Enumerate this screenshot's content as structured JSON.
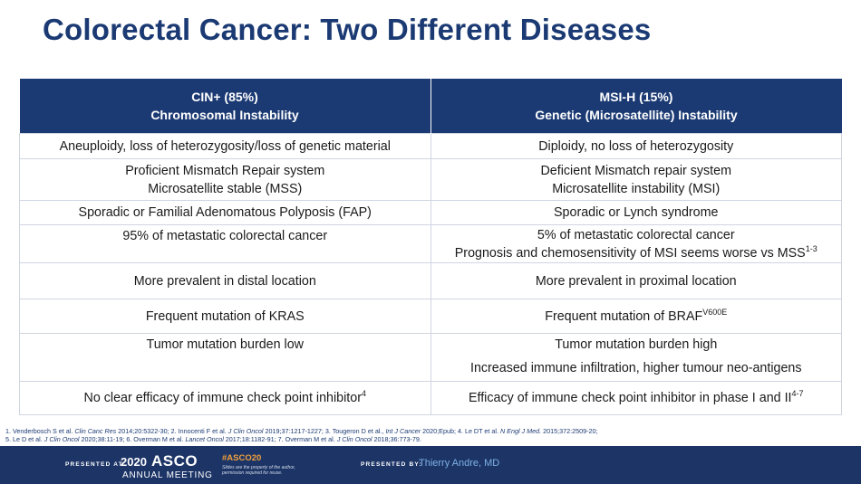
{
  "title": "Colorectal Cancer: Two Different Diseases",
  "table": {
    "header": {
      "left_line1": "CIN+ (85%)",
      "left_line2": "Chromosomal Instability",
      "right_line1": "MSI-H (15%)",
      "right_line2": "Genetic (Microsatellite) Instability"
    },
    "rows": [
      {
        "left": "Aneuploidy, loss of  heterozygosity/loss of genetic material",
        "right": "Diploidy, no loss of heterozygosity"
      },
      {
        "left_1": "Proficient Mismatch Repair system",
        "left_2": "Microsatellite stable (MSS)",
        "right_1": "Deficient Mismatch repair system",
        "right_2": "Microsatellite instability (MSI)"
      },
      {
        "left": "Sporadic or Familial Adenomatous Polyposis (FAP)",
        "right": "Sporadic or Lynch syndrome"
      },
      {
        "left": "95% of metastatic colorectal cancer",
        "right_1": "5% of metastatic colorectal cancer",
        "right_2": "Prognosis and chemosensitivity of MSI seems worse vs MSS",
        "right_2_sup": "1-3"
      },
      {
        "left": "More prevalent in distal location",
        "right": "More prevalent in proximal location"
      },
      {
        "left": "Frequent mutation of KRAS",
        "right": "Frequent mutation of BRAF",
        "right_sup": "V600E"
      },
      {
        "left": "Tumor mutation burden low",
        "right_1": "Tumor mutation burden high",
        "right_2": "Increased immune infiltration, higher tumour neo-antigens"
      },
      {
        "left": "No clear efficacy of immune check point inhibitor",
        "left_sup": "4",
        "right": "Efficacy of immune check point inhibitor in phase I and II",
        "right_sup": "4-7"
      }
    ]
  },
  "references": {
    "r1a": "1. Venderbosch S et al. ",
    "r1j": "Clin Canc Res",
    "r1b": " 2014;20:5322-30;  2. Innocenti  F et al. ",
    "r2j": "J Clin Oncol",
    "r2b": " 2019;37:1217-1227;  3. Tougeron D et al.,  ",
    "r3j": "Int J Cancer",
    "r3b": " 2020;Epub;  4. Le DT et al. ",
    "r4j": "N Engl J Med.",
    "r4b": " 2015;372:2509-20;",
    "r5a": "5. Le D et al. ",
    "r5j": "J Clin Oncol",
    "r5b": " 2020;38:11-19;  6. Overman M et al. ",
    "r6j": "Lancet Oncol",
    "r6b": " 2017;18:1182-91;  7. Overman  M et al. ",
    "r7j": "J Clin Oncol",
    "r7b": " 2018;36:773-79."
  },
  "footer": {
    "presented_at": "PRESENTED AT:",
    "year": "2020",
    "brand": "ASCO",
    "meeting": "ANNUAL MEETING",
    "hashtag": "#ASCO20",
    "disclaimer": "Slides are the property of the author, permission required for reuse.",
    "presented_by": "PRESENTED BY:",
    "presenter": "Thierry Andre, MD"
  }
}
